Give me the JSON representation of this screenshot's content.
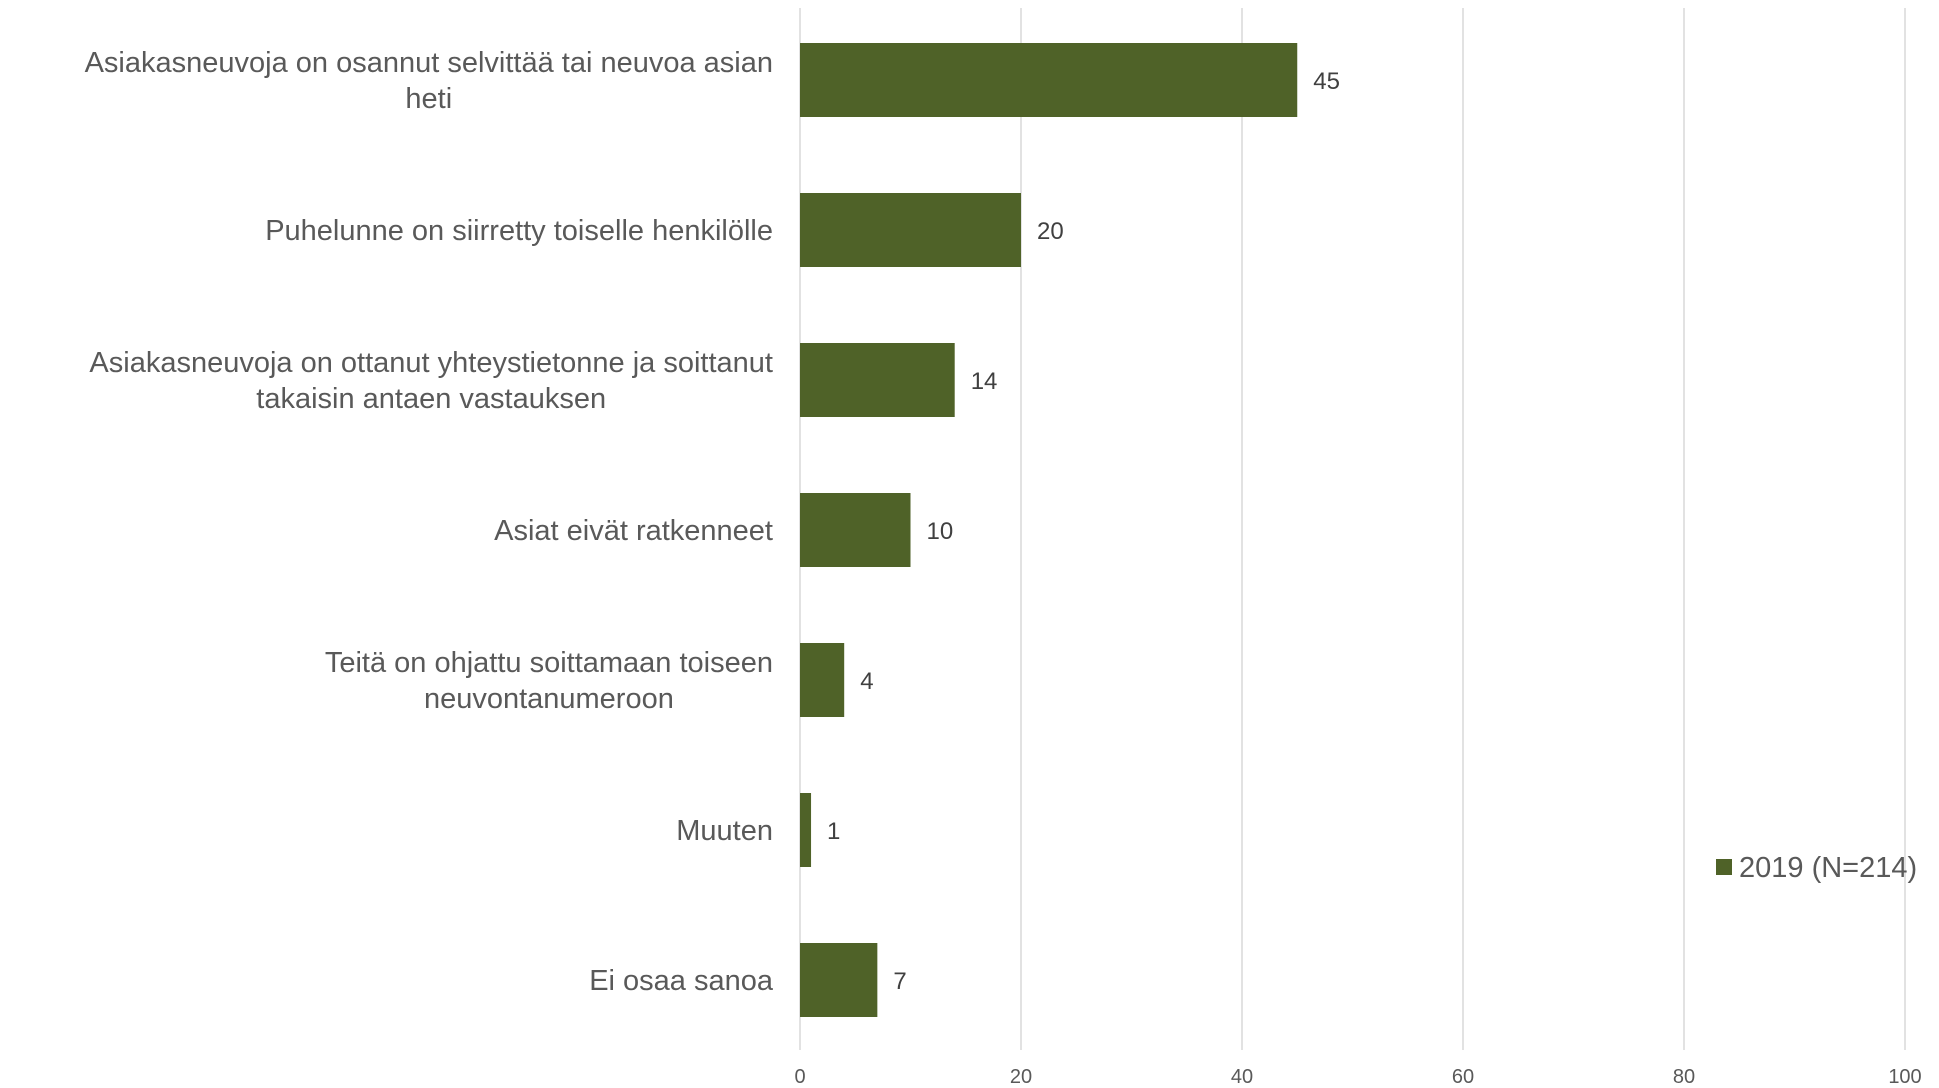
{
  "chart_data": {
    "type": "bar",
    "orientation": "horizontal",
    "categories": [
      [
        "Asiakasneuvoja on osannut selvittää tai neuvoa asian",
        "heti"
      ],
      [
        "Puhelunne on siirretty toiselle henkilölle"
      ],
      [
        "Asiakasneuvoja on ottanut yhteystietonne ja soittanut",
        "takaisin antaen vastauksen"
      ],
      [
        "Asiat eivät ratkenneet"
      ],
      [
        "Teitä on ohjattu soittamaan toiseen",
        "neuvontanumeroon"
      ],
      [
        "Muuten"
      ],
      [
        "Ei osaa sanoa"
      ]
    ],
    "series": [
      {
        "name": "2019 (N=214)",
        "values": [
          45,
          20,
          14,
          10,
          4,
          1,
          7
        ],
        "color": "#4f6228"
      }
    ],
    "data_labels": [
      "45",
      "20",
      "14",
      "10",
      "4",
      "1",
      "7"
    ],
    "xlim": [
      0,
      100
    ],
    "x_ticks": [
      "0",
      "20",
      "40",
      "60",
      "80",
      "100"
    ],
    "grid": "vertical",
    "legend_position": "right"
  }
}
